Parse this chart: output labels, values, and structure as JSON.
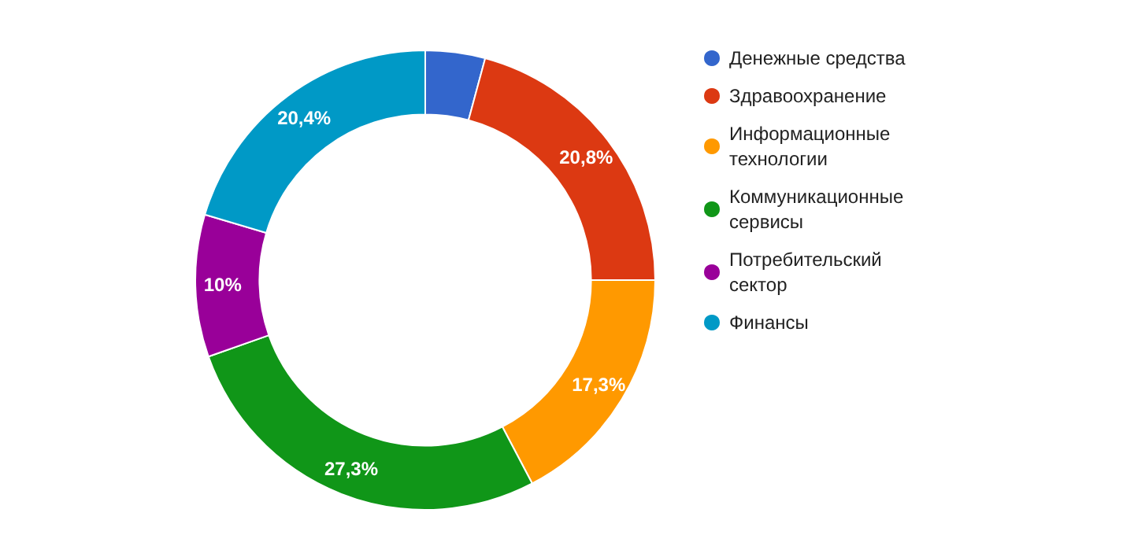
{
  "chart_data": {
    "type": "donut",
    "categories": [
      "Денежные средства",
      "Здравоохранение",
      "Информационные технологии",
      "Коммуникационные сервисы",
      "Потребительский сектор",
      "Финансы"
    ],
    "values": [
      4.2,
      20.8,
      17.3,
      27.3,
      10,
      20.4
    ],
    "colors": [
      "#3366cc",
      "#dc3912",
      "#ff9900",
      "#109618",
      "#990099",
      "#0099c6"
    ],
    "value_labels": [
      null,
      "20,8%",
      "17,3%",
      "27,3%",
      "10%",
      "20,4%"
    ],
    "legend": "right"
  }
}
